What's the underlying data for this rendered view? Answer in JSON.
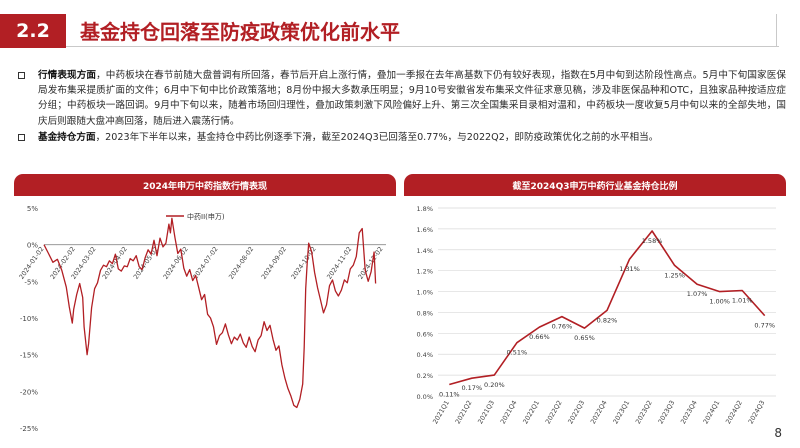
{
  "header": {
    "section_number": "2.2",
    "title": "基金持仓回落至防疫政策优化前水平"
  },
  "body": {
    "para1": {
      "lead": "行情表现方面",
      "text": "，中药板块在春节前随大盘普调有所回落，春节后开启上涨行情，叠加一季报在去年高基数下仍有较好表现，指数在5月中旬到达阶段性高点。5月中下旬国家医保局发布集采提质扩面的文件；6月中下旬中比价政策落地；8月份中报大多数承压明显；9月10号安徽省发布集采文件征求意见稿，涉及非医保品种和OTC，且独家品种按适应症分组；中药板块一路回调。9月中下旬以来，随着市场回归理性，叠加政策刺激下风险偏好上升、第三次全国集采目录相对温和，中药板块一度收复5月中旬以来的全部失地，国庆后则跟随大盘冲高回落，随后进入震荡行情。"
    },
    "para2": {
      "lead": "基金持仓方面",
      "text": "，2023年下半年以来，基金持仓中药比例逐季下滑，截至2024Q3已回落至0.77%，与2022Q2，即防疫政策优化之前的水平相当。"
    }
  },
  "colors": {
    "brand_red": "#b21f24",
    "line_red": "#b21f24",
    "grid": "#d9d9d9",
    "axis_text": "#444444"
  },
  "chart_data": [
    {
      "type": "line",
      "title": "2024年申万中药指数行情表现",
      "legend": "中药II(申万)",
      "legend_position": "top",
      "x_tick_labels": [
        "2024-01-02",
        "2024-02-02",
        "2024-03-02",
        "2024-04-02",
        "2024-05-02",
        "2024-06-02",
        "2024-07-02",
        "2024-08-02",
        "2024-09-02",
        "2024-10-02",
        "2024-11-02",
        "2024-12-02"
      ],
      "x_tick_index": [
        0,
        21,
        35,
        56,
        77,
        97,
        117,
        141,
        163,
        183,
        207,
        228
      ],
      "y_tick_labels": [
        "5%",
        "0%",
        "-5%",
        "-10%",
        "-15%",
        "-20%",
        "-25%"
      ],
      "y_tick_values": [
        5,
        0,
        -5,
        -10,
        -15,
        -20,
        -25
      ],
      "ylim": [
        -25,
        5
      ],
      "grid": false,
      "series": [
        {
          "name": "中药II(申万)",
          "keypoints": [
            [
              0,
              0
            ],
            [
              3,
              -1.2
            ],
            [
              6,
              -2.4
            ],
            [
              9,
              -2.0
            ],
            [
              12,
              -3.5
            ],
            [
              15,
              -5.8
            ],
            [
              17,
              -8.5
            ],
            [
              19,
              -10.7
            ],
            [
              20,
              -8.8
            ],
            [
              22,
              -6.8
            ],
            [
              24,
              -5.3
            ],
            [
              26,
              -7.2
            ],
            [
              27,
              -11.2
            ],
            [
              29,
              -15.0
            ],
            [
              30,
              -13.5
            ],
            [
              32,
              -8.6
            ],
            [
              34,
              -6.0
            ],
            [
              36,
              -5.2
            ],
            [
              38,
              -3.5
            ],
            [
              40,
              -2.8
            ],
            [
              42,
              -3.0
            ],
            [
              44,
              -2.2
            ],
            [
              46,
              -2.6
            ],
            [
              48,
              -1.3
            ],
            [
              50,
              -3.3
            ],
            [
              52,
              -3.6
            ],
            [
              54,
              -2.9
            ],
            [
              56,
              -3.0
            ],
            [
              58,
              -1.9
            ],
            [
              60,
              -2.2
            ],
            [
              62,
              -1.5
            ],
            [
              64,
              -3.0
            ],
            [
              66,
              -3.4
            ],
            [
              68,
              -1.8
            ],
            [
              70,
              -0.7
            ],
            [
              72,
              -1.3
            ],
            [
              74,
              0.6
            ],
            [
              76,
              -1.5
            ],
            [
              78,
              0.9
            ],
            [
              80,
              -0.3
            ],
            [
              82,
              0.2
            ],
            [
              84,
              2.8
            ],
            [
              85,
              1.6
            ],
            [
              86,
              3.6
            ],
            [
              88,
              1.0
            ],
            [
              90,
              -1.2
            ],
            [
              92,
              -0.6
            ],
            [
              94,
              -3.2
            ],
            [
              96,
              -4.3
            ],
            [
              98,
              -3.4
            ],
            [
              100,
              -4.9
            ],
            [
              102,
              -4.2
            ],
            [
              104,
              -5.8
            ],
            [
              106,
              -7.5
            ],
            [
              108,
              -6.8
            ],
            [
              110,
              -9.5
            ],
            [
              112,
              -10.0
            ],
            [
              114,
              -11.2
            ],
            [
              116,
              -13.6
            ],
            [
              118,
              -12.4
            ],
            [
              120,
              -12.0
            ],
            [
              122,
              -10.8
            ],
            [
              124,
              -12.3
            ],
            [
              126,
              -13.5
            ],
            [
              128,
              -12.6
            ],
            [
              130,
              -13.0
            ],
            [
              132,
              -12.2
            ],
            [
              134,
              -13.4
            ],
            [
              136,
              -14.0
            ],
            [
              138,
              -12.6
            ],
            [
              140,
              -13.9
            ],
            [
              142,
              -14.6
            ],
            [
              144,
              -13.0
            ],
            [
              146,
              -12.4
            ],
            [
              148,
              -10.5
            ],
            [
              150,
              -11.7
            ],
            [
              152,
              -11.0
            ],
            [
              154,
              -12.9
            ],
            [
              156,
              -14.4
            ],
            [
              158,
              -13.8
            ],
            [
              160,
              -16.4
            ],
            [
              162,
              -18.2
            ],
            [
              164,
              -19.6
            ],
            [
              166,
              -20.6
            ],
            [
              168,
              -21.9
            ],
            [
              170,
              -22.2
            ],
            [
              172,
              -21.1
            ],
            [
              174,
              -19.0
            ],
            [
              175,
              -14.0
            ],
            [
              176,
              -6.0
            ],
            [
              177,
              -2.5
            ],
            [
              178,
              0.2
            ],
            [
              180,
              -1.0
            ],
            [
              182,
              -3.8
            ],
            [
              184,
              -5.9
            ],
            [
              186,
              -7.6
            ],
            [
              188,
              -9.3
            ],
            [
              190,
              -8.2
            ],
            [
              192,
              -5.6
            ],
            [
              194,
              -4.8
            ],
            [
              196,
              -6.3
            ],
            [
              198,
              -7.0
            ],
            [
              200,
              -6.2
            ],
            [
              202,
              -4.8
            ],
            [
              204,
              -5.2
            ],
            [
              206,
              -3.3
            ],
            [
              208,
              -2.8
            ],
            [
              210,
              -1.6
            ],
            [
              212,
              1.6
            ],
            [
              214,
              2.2
            ],
            [
              216,
              -3.5
            ],
            [
              218,
              -5.0
            ],
            [
              220,
              -3.7
            ],
            [
              222,
              -1.0
            ],
            [
              223,
              -5.3
            ]
          ]
        }
      ]
    },
    {
      "type": "line",
      "title": "截至2024Q3申万中药行业基金持仓比例",
      "grid": true,
      "ylim": [
        0,
        1.8
      ],
      "y_tick_labels": [
        "0.0%",
        "0.2%",
        "0.4%",
        "0.6%",
        "0.8%",
        "1.0%",
        "1.2%",
        "1.4%",
        "1.6%",
        "1.8%"
      ],
      "y_tick_values": [
        0,
        0.2,
        0.4,
        0.6,
        0.8,
        1.0,
        1.2,
        1.4,
        1.6,
        1.8
      ],
      "categories": [
        "2021Q1",
        "2021Q2",
        "2021Q3",
        "2021Q4",
        "2022Q1",
        "2022Q2",
        "2022Q3",
        "2022Q4",
        "2023Q1",
        "2023Q2",
        "2023Q3",
        "2023Q4",
        "2024Q1",
        "2024Q2",
        "2024Q3"
      ],
      "series": [
        {
          "name": "",
          "values": [
            0.11,
            0.17,
            0.2,
            0.51,
            0.66,
            0.76,
            0.65,
            0.82,
            1.31,
            1.58,
            1.25,
            1.07,
            1.0,
            1.01,
            0.77
          ],
          "labels": [
            "0.11%",
            "0.17%",
            "0.20%",
            "0.51%",
            "0.66%",
            "0.76%",
            "0.65%",
            "0.82%",
            "1.31%",
            "1.58%",
            "1.25%",
            "1.07%",
            "1.00%",
            "1.01%",
            "0.77%"
          ]
        }
      ]
    }
  ],
  "footer": {
    "page_number": "8"
  }
}
